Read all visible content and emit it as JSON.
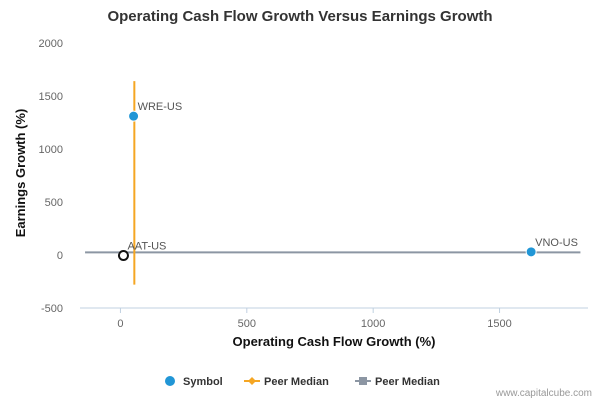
{
  "chart_data": {
    "type": "scatter",
    "title": "Operating Cash Flow Growth Versus Earnings Growth",
    "xlabel": "Operating Cash Flow Growth (%)",
    "ylabel": "Earnings Growth (%)",
    "xlim": [
      -160,
      1850
    ],
    "ylim": [
      -500,
      2000
    ],
    "x_ticks": [
      0,
      500,
      1000,
      1500
    ],
    "y_ticks": [
      -500,
      0,
      500,
      1000,
      1500,
      2000
    ],
    "grid": false,
    "legend_placement": "bottom-center",
    "points": [
      {
        "label": "WRE-US",
        "x": 52,
        "y": 1310,
        "style": "filled"
      },
      {
        "label": "AAT-US",
        "x": 12,
        "y": -5,
        "style": "hollow"
      },
      {
        "label": "VNO-US",
        "x": 1625,
        "y": 30,
        "style": "filled"
      }
    ],
    "peer_median_x": {
      "name": "Peer Median",
      "value": 55,
      "y_range": [
        -280,
        1640
      ]
    },
    "peer_median_y": {
      "name": "Peer Median",
      "value": 25,
      "x_range": [
        -140,
        1820
      ]
    },
    "legend": [
      {
        "name": "Symbol",
        "marker": "circle",
        "color": "#2196d6"
      },
      {
        "name": "Peer Median",
        "marker": "diamond",
        "color": "#f5a623"
      },
      {
        "name": "Peer Median",
        "marker": "square",
        "color": "#8c96a3"
      }
    ],
    "colors": {
      "symbol": "#2196d6",
      "peer_x": "#f5a623",
      "peer_y": "#8c96a3",
      "axis_line": "#c0d0e0",
      "hollow_stroke": "#111111"
    }
  },
  "credit": "www.capitalcube.com"
}
